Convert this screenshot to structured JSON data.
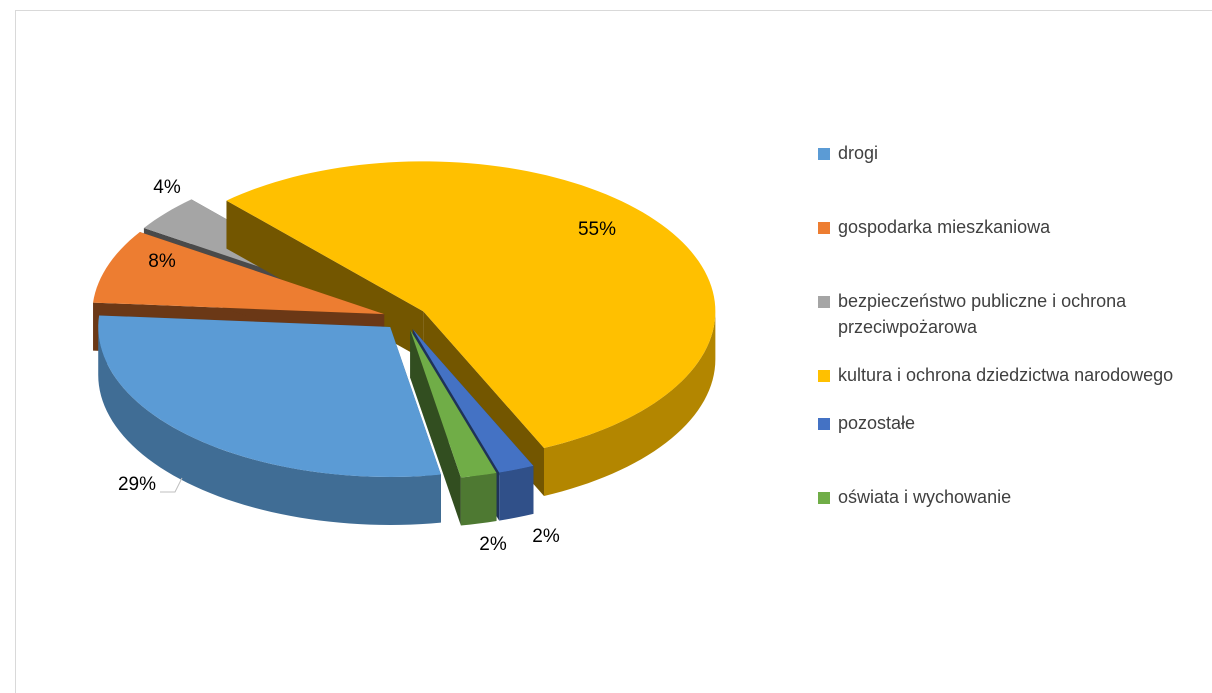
{
  "chart_data": {
    "type": "pie3d",
    "categories": [
      "drogi",
      "gospodarka mieszkaniowa",
      "bezpieczeństwo publiczne i ochrona przeciwpożarowa",
      "kultura i ochrona dziedzictwa narodowego",
      "pozostałe",
      "oświata i wychowanie"
    ],
    "values": [
      29,
      8,
      4,
      55,
      2,
      2
    ],
    "value_labels": [
      "29%",
      "8%",
      "4%",
      "55%",
      "2%",
      "2%"
    ],
    "colors": [
      "#5b9bd5",
      "#ed7d31",
      "#a5a5a5",
      "#ffc000",
      "#4472c4",
      "#70ad47"
    ],
    "legend": "right"
  }
}
